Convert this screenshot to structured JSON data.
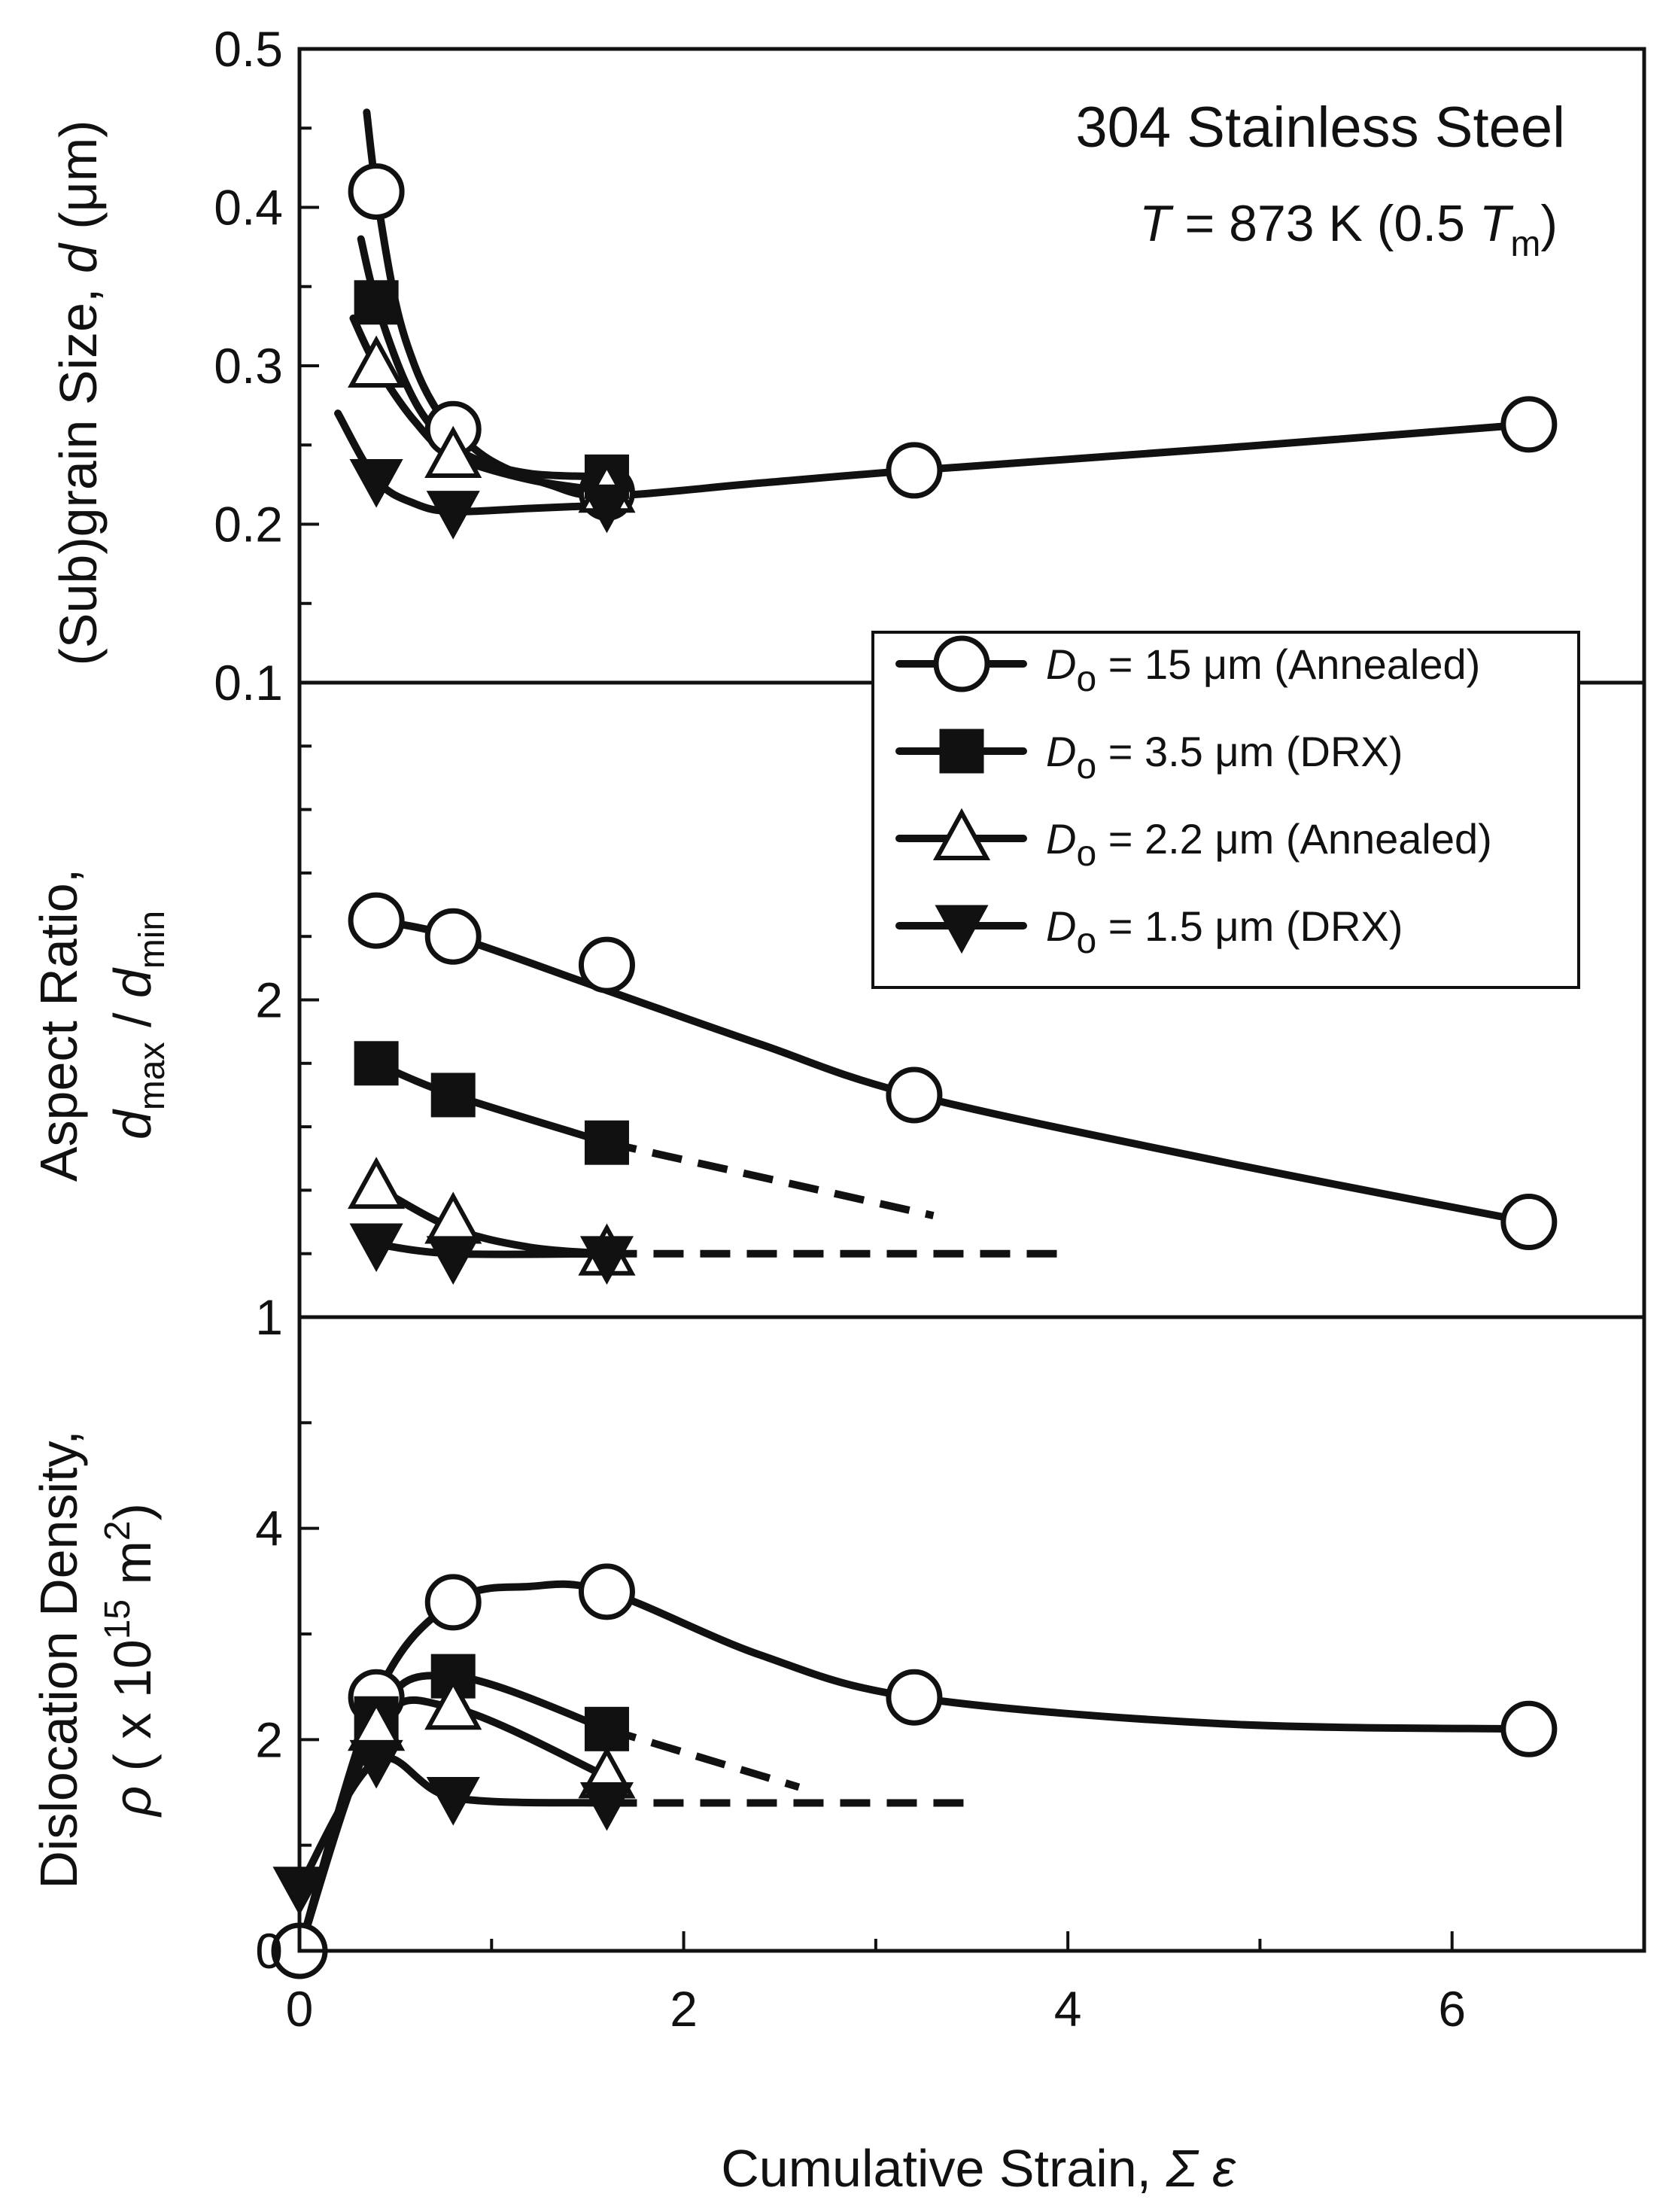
{
  "chart_data": {
    "type": "line",
    "title": "304 Stainless Steel",
    "condition": {
      "prefix": "T",
      "value": " = 873 K (0.5 ",
      "sym": "T",
      "sub": "m",
      "close": ")"
    },
    "xlabel": {
      "text": "Cumulative Strain, ",
      "sym": "Σ ε"
    },
    "xlim": [
      0,
      7
    ],
    "xticks": [
      "0",
      "2",
      "4",
      "6"
    ],
    "legend": {
      "placement": "center-right",
      "symbol": "D",
      "subscript": "o",
      "entries": [
        {
          "marker": "circle-open",
          "text": " = 15 μm (Annealed)"
        },
        {
          "marker": "square-filled",
          "text": " = 3.5 μm (DRX)"
        },
        {
          "marker": "triangle-up-open",
          "text": " = 2.2 μm (Annealed)"
        },
        {
          "marker": "triangle-down-filled",
          "text": " = 1.5 μm (DRX)"
        }
      ]
    },
    "panels": [
      {
        "id": "subgrain",
        "ylabel": {
          "text": "(Sub)grain Size, ",
          "sym": "d",
          "unit": " (μm)"
        },
        "ylim": [
          0.1,
          0.5
        ],
        "yticks": [
          {
            "v": 0.1,
            "l": "0.1"
          },
          {
            "v": 0.2,
            "l": "0.2"
          },
          {
            "v": 0.3,
            "l": "0.3"
          },
          {
            "v": 0.4,
            "l": "0.4"
          },
          {
            "v": 0.5,
            "l": "0.5"
          }
        ],
        "minor_step": 0.05,
        "series": [
          {
            "name": "15 μm (Annealed)",
            "marker": "circle-open",
            "points": [
              [
                0.4,
                0.41
              ],
              [
                0.8,
                0.26
              ],
              [
                1.6,
                0.22
              ],
              [
                3.2,
                0.234
              ],
              [
                6.4,
                0.263
              ]
            ],
            "curve": [
              [
                0.35,
                0.46
              ],
              [
                0.4,
                0.41
              ],
              [
                0.5,
                0.34
              ],
              [
                0.6,
                0.3
              ],
              [
                0.7,
                0.275
              ],
              [
                0.8,
                0.26
              ],
              [
                1.0,
                0.24
              ],
              [
                1.3,
                0.225
              ],
              [
                1.6,
                0.218
              ],
              [
                2.4,
                0.226
              ],
              [
                3.2,
                0.234
              ],
              [
                4.8,
                0.248
              ],
              [
                6.4,
                0.263
              ]
            ]
          },
          {
            "name": "3.5 μm (DRX)",
            "marker": "square-filled",
            "points": [
              [
                0.4,
                0.34
              ],
              [
                1.6,
                0.23
              ]
            ],
            "curve": [
              [
                0.32,
                0.38
              ],
              [
                0.4,
                0.34
              ],
              [
                0.55,
                0.29
              ],
              [
                0.7,
                0.26
              ],
              [
                0.9,
                0.242
              ],
              [
                1.2,
                0.232
              ],
              [
                1.6,
                0.23
              ]
            ]
          },
          {
            "name": "2.2 μm (Annealed)",
            "marker": "triangle-up-open",
            "points": [
              [
                0.4,
                0.3
              ],
              [
                0.8,
                0.243
              ],
              [
                1.6,
                0.221
              ]
            ],
            "curve": [
              [
                0.28,
                0.33
              ],
              [
                0.4,
                0.3
              ],
              [
                0.6,
                0.265
              ],
              [
                0.8,
                0.243
              ],
              [
                1.2,
                0.228
              ],
              [
                1.6,
                0.221
              ]
            ]
          },
          {
            "name": "1.5 μm (DRX)",
            "marker": "triangle-down-filled",
            "points": [
              [
                0.4,
                0.228
              ],
              [
                0.8,
                0.208
              ],
              [
                1.6,
                0.212
              ]
            ],
            "curve": [
              [
                0.2,
                0.27
              ],
              [
                0.4,
                0.228
              ],
              [
                0.6,
                0.213
              ],
              [
                0.8,
                0.208
              ],
              [
                1.2,
                0.21
              ],
              [
                1.6,
                0.212
              ]
            ]
          }
        ]
      },
      {
        "id": "aspect",
        "ylabel": {
          "line1": "Aspect Ratio,",
          "sym1": "d",
          "sub1": "max",
          "sep": " / ",
          "sym2": "d",
          "sub2": "min"
        },
        "ylim": [
          1,
          3
        ],
        "yticks": [
          {
            "v": 1,
            "l": "1"
          },
          {
            "v": 2,
            "l": "2"
          }
        ],
        "minor_step": 0.2,
        "series": [
          {
            "name": "15 μm (Annealed)",
            "marker": "circle-open",
            "points": [
              [
                0.4,
                2.25
              ],
              [
                0.8,
                2.2
              ],
              [
                1.6,
                2.11
              ],
              [
                3.2,
                1.7
              ],
              [
                6.4,
                1.3
              ]
            ],
            "curve": [
              [
                0.4,
                2.25
              ],
              [
                0.8,
                2.2
              ],
              [
                1.6,
                2.03
              ],
              [
                2.4,
                1.86
              ],
              [
                3.2,
                1.7
              ],
              [
                4.8,
                1.49
              ],
              [
                6.4,
                1.3
              ]
            ]
          },
          {
            "name": "3.5 μm (DRX)",
            "marker": "square-filled",
            "points": [
              [
                0.4,
                1.8
              ],
              [
                0.8,
                1.7
              ],
              [
                1.6,
                1.55
              ]
            ],
            "curve": [
              [
                0.4,
                1.8
              ],
              [
                0.8,
                1.7
              ],
              [
                1.6,
                1.55
              ]
            ],
            "dashed": [
              [
                1.6,
                1.55
              ],
              [
                3.3,
                1.32
              ]
            ]
          },
          {
            "name": "2.2 μm (Annealed)",
            "marker": "triangle-up-open",
            "points": [
              [
                0.4,
                1.41
              ],
              [
                0.8,
                1.3
              ],
              [
                1.6,
                1.2
              ]
            ],
            "curve": [
              [
                0.4,
                1.41
              ],
              [
                0.8,
                1.28
              ],
              [
                1.2,
                1.22
              ],
              [
                1.6,
                1.2
              ]
            ],
            "dashed": [
              [
                1.6,
                1.2
              ],
              [
                4.0,
                1.2
              ]
            ]
          },
          {
            "name": "1.5 μm (DRX)",
            "marker": "triangle-down-filled",
            "points": [
              [
                0.4,
                1.23
              ],
              [
                0.8,
                1.19
              ],
              [
                1.6,
                1.19
              ]
            ],
            "curve": [
              [
                0.4,
                1.23
              ],
              [
                0.8,
                1.2
              ],
              [
                1.6,
                1.2
              ]
            ]
          }
        ]
      },
      {
        "id": "dislocation",
        "ylabel": {
          "line1": "Dislocation Density,",
          "sym": "ρ",
          "mid": " ( x 10",
          "sup": "15",
          "unit": " m",
          "sup2": "2",
          "close": ")"
        },
        "ylim": [
          0,
          6
        ],
        "yticks": [
          {
            "v": 0,
            "l": "0"
          },
          {
            "v": 2,
            "l": "2"
          },
          {
            "v": 4,
            "l": "4"
          }
        ],
        "minor_step": 1,
        "series": [
          {
            "name": "15 μm (Annealed)",
            "marker": "circle-open",
            "points": [
              [
                0,
                0
              ],
              [
                0.4,
                2.4
              ],
              [
                0.8,
                3.3
              ],
              [
                1.6,
                3.4
              ],
              [
                3.2,
                2.4
              ],
              [
                6.4,
                2.1
              ]
            ],
            "curve": [
              [
                0,
                0
              ],
              [
                0.4,
                2.4
              ],
              [
                0.8,
                3.3
              ],
              [
                1.2,
                3.45
              ],
              [
                1.6,
                3.4
              ],
              [
                2.4,
                2.8
              ],
              [
                3.2,
                2.4
              ],
              [
                4.8,
                2.15
              ],
              [
                6.4,
                2.1
              ]
            ]
          },
          {
            "name": "3.5 μm (DRX)",
            "marker": "square-filled",
            "points": [
              [
                0.4,
                2.2
              ],
              [
                0.8,
                2.6
              ],
              [
                1.6,
                2.1
              ]
            ],
            "curve": [
              [
                0,
                0
              ],
              [
                0.4,
                2.2
              ],
              [
                0.8,
                2.6
              ],
              [
                1.6,
                2.1
              ]
            ],
            "dashed": [
              [
                1.6,
                2.1
              ],
              [
                2.6,
                1.55
              ]
            ]
          },
          {
            "name": "2.2 μm (Annealed)",
            "marker": "triangle-up-open",
            "points": [
              [
                0.4,
                2.1
              ],
              [
                0.8,
                2.3
              ],
              [
                1.6,
                1.65
              ]
            ],
            "curve": [
              [
                0,
                0
              ],
              [
                0.4,
                2.1
              ],
              [
                0.8,
                2.3
              ],
              [
                1.6,
                1.65
              ]
            ]
          },
          {
            "name": "1.5 μm (DRX)",
            "marker": "triangle-down-filled",
            "points": [
              [
                0,
                0.6
              ],
              [
                0.4,
                1.8
              ],
              [
                0.8,
                1.45
              ],
              [
                1.6,
                1.4
              ]
            ],
            "curve": [
              [
                0,
                0.6
              ],
              [
                0.4,
                1.8
              ],
              [
                0.8,
                1.45
              ],
              [
                1.6,
                1.4
              ]
            ],
            "dashed": [
              [
                1.6,
                1.4
              ],
              [
                3.5,
                1.4
              ]
            ]
          }
        ]
      }
    ]
  }
}
